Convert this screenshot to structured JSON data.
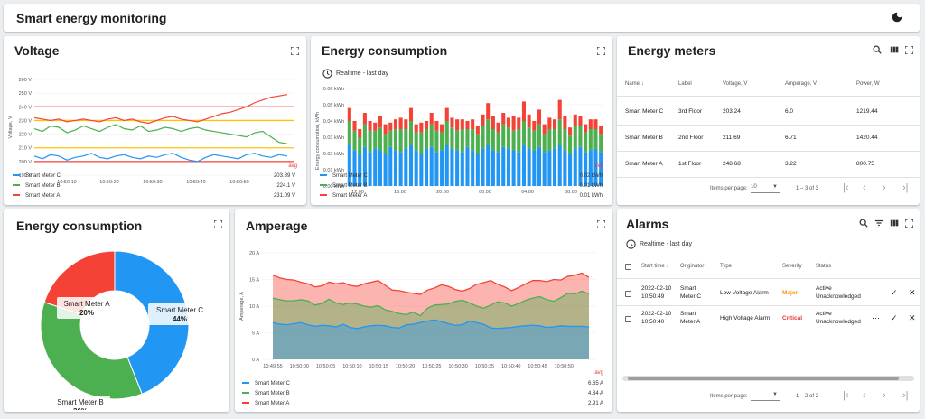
{
  "app": {
    "title": "Smart energy monitoring"
  },
  "colors": {
    "c": "#2196f3",
    "b": "#4caf50",
    "a": "#f44336"
  },
  "voltage": {
    "title": "Voltage",
    "avg_label": "avg",
    "legend": [
      {
        "name": "Smart Meter C",
        "value": "203.89 V"
      },
      {
        "name": "Smart Meter B",
        "value": "224.1 V"
      },
      {
        "name": "Smart Meter A",
        "value": "231.09 V"
      }
    ]
  },
  "energy_bar": {
    "title": "Energy consumption",
    "subtitle": "Realtime - last day",
    "avg_label": "avg",
    "legend": [
      {
        "name": "Smart Meter C",
        "value": "0.02 kWh"
      },
      {
        "name": "Smart Meter B",
        "value": "0.01 kWh"
      },
      {
        "name": "Smart Meter A",
        "value": "0.01 kWh"
      }
    ]
  },
  "meters": {
    "title": "Energy meters",
    "headers": [
      "Name",
      "Label",
      "Voltage, V",
      "Amperage, V",
      "Power, W"
    ],
    "rows": [
      [
        "Smart Meter C",
        "3rd Floor",
        "203.24",
        "6.0",
        "1219.44"
      ],
      [
        "Smart Meter B",
        "2nd Floor",
        "211.69",
        "6.71",
        "1420.44"
      ],
      [
        "Smart Meter A",
        "1st Floor",
        "248.68",
        "3.22",
        "800.75"
      ]
    ],
    "items_per_page_label": "Items per page:",
    "items_per_page": "10",
    "range": "1 – 3 of 3"
  },
  "pie": {
    "title": "Energy consumption",
    "slices": [
      {
        "name": "Smart Meter C",
        "pct": "44%"
      },
      {
        "name": "Smart Meter B",
        "pct": "36%"
      },
      {
        "name": "Smart Meter A",
        "pct": "20%"
      }
    ]
  },
  "amperage": {
    "title": "Amperage",
    "avg_label": "avg",
    "legend": [
      {
        "name": "Smart Meter C",
        "value": "6.65 A"
      },
      {
        "name": "Smart Meter B",
        "value": "4.84 A"
      },
      {
        "name": "Smart Meter A",
        "value": "2.91 A"
      }
    ]
  },
  "alarms": {
    "title": "Alarms",
    "subtitle": "Realtime - last day",
    "headers": [
      "Start time",
      "Originator",
      "Type",
      "Severity",
      "Status"
    ],
    "rows": [
      {
        "time1": "2022-02-10",
        "time2": "10:50:49",
        "orig1": "Smart",
        "orig2": "Meter C",
        "type": "Low Voltage Alarm",
        "severity": "Major",
        "status1": "Active",
        "status2": "Unacknowledged"
      },
      {
        "time1": "2022-02-10",
        "time2": "10:50:40",
        "orig1": "Smart",
        "orig2": "Meter A",
        "type": "High Voltage Alarm",
        "severity": "Critical",
        "status1": "Active",
        "status2": "Unacknowledged"
      }
    ],
    "items_per_page_label": "Items per page:",
    "items_per_page": "",
    "range": "1 – 2 of 2"
  },
  "chart_data": [
    {
      "type": "line",
      "title": "Voltage",
      "ylabel": "Voltage, V",
      "ylim": [
        190,
        260
      ],
      "yticks": [
        "260 V",
        "250 V",
        "240 V",
        "230 V",
        "220 V",
        "210 V",
        "200 V",
        "190 V"
      ],
      "xticks": [
        "10:50:10",
        "10:50:20",
        "10:50:30",
        "10:50:40",
        "10:50:50"
      ],
      "thresholds": [
        240,
        230,
        210,
        200
      ],
      "series": [
        {
          "name": "Smart Meter A",
          "color": "#f44336",
          "values": [
            232,
            231,
            230,
            231,
            229,
            230,
            231,
            230,
            229,
            231,
            232,
            230,
            231,
            229,
            228,
            230,
            232,
            233,
            231,
            230,
            229,
            231,
            233,
            235,
            236,
            238,
            240,
            243,
            245,
            247,
            248,
            249
          ]
        },
        {
          "name": "Smart Meter B",
          "color": "#4caf50",
          "values": [
            224,
            222,
            226,
            225,
            221,
            223,
            226,
            224,
            222,
            225,
            227,
            224,
            223,
            226,
            222,
            223,
            225,
            224,
            222,
            224,
            225,
            223,
            222,
            221,
            220,
            219,
            218,
            221,
            222,
            218,
            214,
            213
          ]
        },
        {
          "name": "Smart Meter C",
          "color": "#2196f3",
          "values": [
            204,
            202,
            205,
            204,
            201,
            203,
            204,
            206,
            203,
            202,
            204,
            205,
            203,
            202,
            204,
            203,
            205,
            206,
            203,
            201,
            200,
            203,
            205,
            204,
            203,
            202,
            205,
            206,
            204,
            203,
            205,
            204
          ]
        }
      ]
    },
    {
      "type": "bar",
      "title": "Energy consumption",
      "ylabel": "Energy consumption, kWh",
      "ylim": [
        0,
        0.06
      ],
      "yticks": [
        "0.06 kWh",
        "0.05 kWh",
        "0.04 kWh",
        "0.03 kWh",
        "0.02 kWh",
        "0.01 kWh",
        "0.00 kWh"
      ],
      "xticks": [
        "12:00",
        "16:00",
        "20:00",
        "00:00",
        "04:00",
        "08:00"
      ],
      "series": [
        {
          "name": "Smart Meter C",
          "color": "#2196f3",
          "values": [
            0.025,
            0.022,
            0.02,
            0.024,
            0.021,
            0.023,
            0.022,
            0.02,
            0.024,
            0.022,
            0.021,
            0.023,
            0.025,
            0.022,
            0.02,
            0.023,
            0.024,
            0.021,
            0.022,
            0.025,
            0.023,
            0.022,
            0.021,
            0.024,
            0.022,
            0.02,
            0.023,
            0.025,
            0.022,
            0.021,
            0.024,
            0.023,
            0.022,
            0.021,
            0.025,
            0.023,
            0.022,
            0.024,
            0.021,
            0.022,
            0.023,
            0.025,
            0.022,
            0.02,
            0.023,
            0.024,
            0.021,
            0.022,
            0.023,
            0.021
          ]
        },
        {
          "name": "Smart Meter B",
          "color": "#4caf50",
          "values": [
            0.015,
            0.012,
            0.01,
            0.014,
            0.013,
            0.011,
            0.014,
            0.012,
            0.01,
            0.013,
            0.014,
            0.012,
            0.015,
            0.011,
            0.013,
            0.012,
            0.014,
            0.013,
            0.011,
            0.015,
            0.013,
            0.012,
            0.014,
            0.011,
            0.013,
            0.012,
            0.014,
            0.016,
            0.013,
            0.012,
            0.014,
            0.013,
            0.012,
            0.014,
            0.015,
            0.013,
            0.012,
            0.014,
            0.011,
            0.013,
            0.012,
            0.016,
            0.013,
            0.011,
            0.014,
            0.013,
            0.012,
            0.013,
            0.012,
            0.011
          ]
        },
        {
          "name": "Smart Meter A",
          "color": "#f44336",
          "values": [
            0.008,
            0.006,
            0.005,
            0.007,
            0.006,
            0.005,
            0.007,
            0.006,
            0.005,
            0.006,
            0.007,
            0.006,
            0.008,
            0.005,
            0.006,
            0.005,
            0.007,
            0.006,
            0.005,
            0.008,
            0.006,
            0.007,
            0.006,
            0.005,
            0.006,
            0.005,
            0.007,
            0.01,
            0.008,
            0.006,
            0.007,
            0.006,
            0.009,
            0.007,
            0.012,
            0.008,
            0.006,
            0.009,
            0.006,
            0.007,
            0.006,
            0.012,
            0.008,
            0.005,
            0.007,
            0.006,
            0.005,
            0.006,
            0.006,
            0.005
          ]
        }
      ]
    },
    {
      "type": "pie",
      "title": "Energy consumption",
      "series": [
        {
          "name": "Smart Meter C",
          "value": 44,
          "color": "#2196f3"
        },
        {
          "name": "Smart Meter B",
          "value": 36,
          "color": "#4caf50"
        },
        {
          "name": "Smart Meter A",
          "value": 20,
          "color": "#f44336"
        }
      ]
    },
    {
      "type": "area",
      "title": "Amperage",
      "ylabel": "Amperage, A",
      "ylim": [
        0,
        20
      ],
      "yticks": [
        "20 A",
        "15 A",
        "10 A",
        "5 A",
        "0 A"
      ],
      "xticks": [
        "10:49:55",
        "10:50:00",
        "10:50:05",
        "10:50:10",
        "10:50:15",
        "10:50:20",
        "10:50:25",
        "10:50:30",
        "10:50:35",
        "10:50:40",
        "10:50:45",
        "10:50:50"
      ],
      "series": [
        {
          "name": "Smart Meter A",
          "color": "#f44336",
          "values": [
            15.8,
            15.3,
            15.0,
            14.9,
            14.5,
            14.2,
            13.6,
            13.8,
            14.5,
            14.2,
            14.4,
            13.9,
            13.7,
            14.2,
            14.5,
            14.8,
            13.9,
            13.0,
            12.9,
            12.6,
            12.4,
            12.2,
            13.0,
            13.4,
            14.0,
            13.7,
            13.1,
            12.8,
            13.3,
            14.1,
            14.4,
            14.8,
            14.1,
            13.6,
            12.9,
            13.5,
            14.2,
            14.8,
            14.8,
            14.6,
            15.0,
            14.9,
            15.6,
            15.8,
            16.2,
            15.4
          ]
        },
        {
          "name": "Smart Meter B",
          "color": "#4caf50",
          "values": [
            11.5,
            11.2,
            11.0,
            11.0,
            11.2,
            11.0,
            10.2,
            10.5,
            11.3,
            10.6,
            10.3,
            10.6,
            10.4,
            10.0,
            9.8,
            10.1,
            9.3,
            9.0,
            8.6,
            8.4,
            8.9,
            8.2,
            9.6,
            10.2,
            10.3,
            10.4,
            10.9,
            11.1,
            10.6,
            10.0,
            9.6,
            10.2,
            10.8,
            10.6,
            10.0,
            10.5,
            11.1,
            11.5,
            11.8,
            11.2,
            10.9,
            11.6,
            12.4,
            12.3,
            12.8,
            12.3
          ]
        },
        {
          "name": "Smart Meter C",
          "color": "#2196f3",
          "values": [
            6.9,
            6.6,
            6.5,
            6.7,
            6.9,
            6.5,
            6.2,
            6.4,
            6.3,
            6.1,
            6.6,
            6.0,
            5.8,
            6.1,
            6.3,
            6.4,
            6.3,
            6.0,
            5.9,
            6.5,
            6.6,
            6.9,
            7.2,
            7.4,
            7.1,
            6.7,
            6.4,
            6.5,
            7.2,
            6.9,
            6.6,
            5.9,
            5.8,
            5.9,
            6.0,
            6.2,
            6.3,
            6.4,
            6.3,
            6.0,
            6.1,
            6.3,
            6.2,
            6.2,
            6.2,
            6.1
          ]
        }
      ]
    }
  ]
}
